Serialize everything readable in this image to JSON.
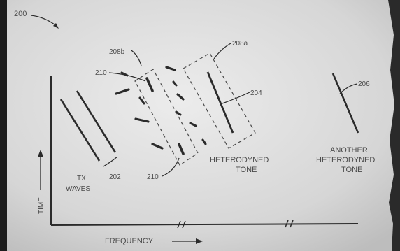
{
  "figure": {
    "figure_ref": "200",
    "axes": {
      "y_label": "TIME",
      "x_label": "FREQUENCY"
    },
    "labels": {
      "tx_waves_line1": "TX",
      "tx_waves_line2": "WAVES",
      "ref_202": "202",
      "ref_210_top": "210",
      "ref_210_bottom": "210",
      "ref_208b": "208b",
      "ref_208a": "208a",
      "ref_204": "204",
      "ref_206": "206",
      "heterodyned_line1": "HETERODYNED",
      "heterodyned_line2": "TONE",
      "another_line1": "ANOTHER",
      "another_line2": "HETERODYNED",
      "another_line3": "TONE"
    }
  }
}
